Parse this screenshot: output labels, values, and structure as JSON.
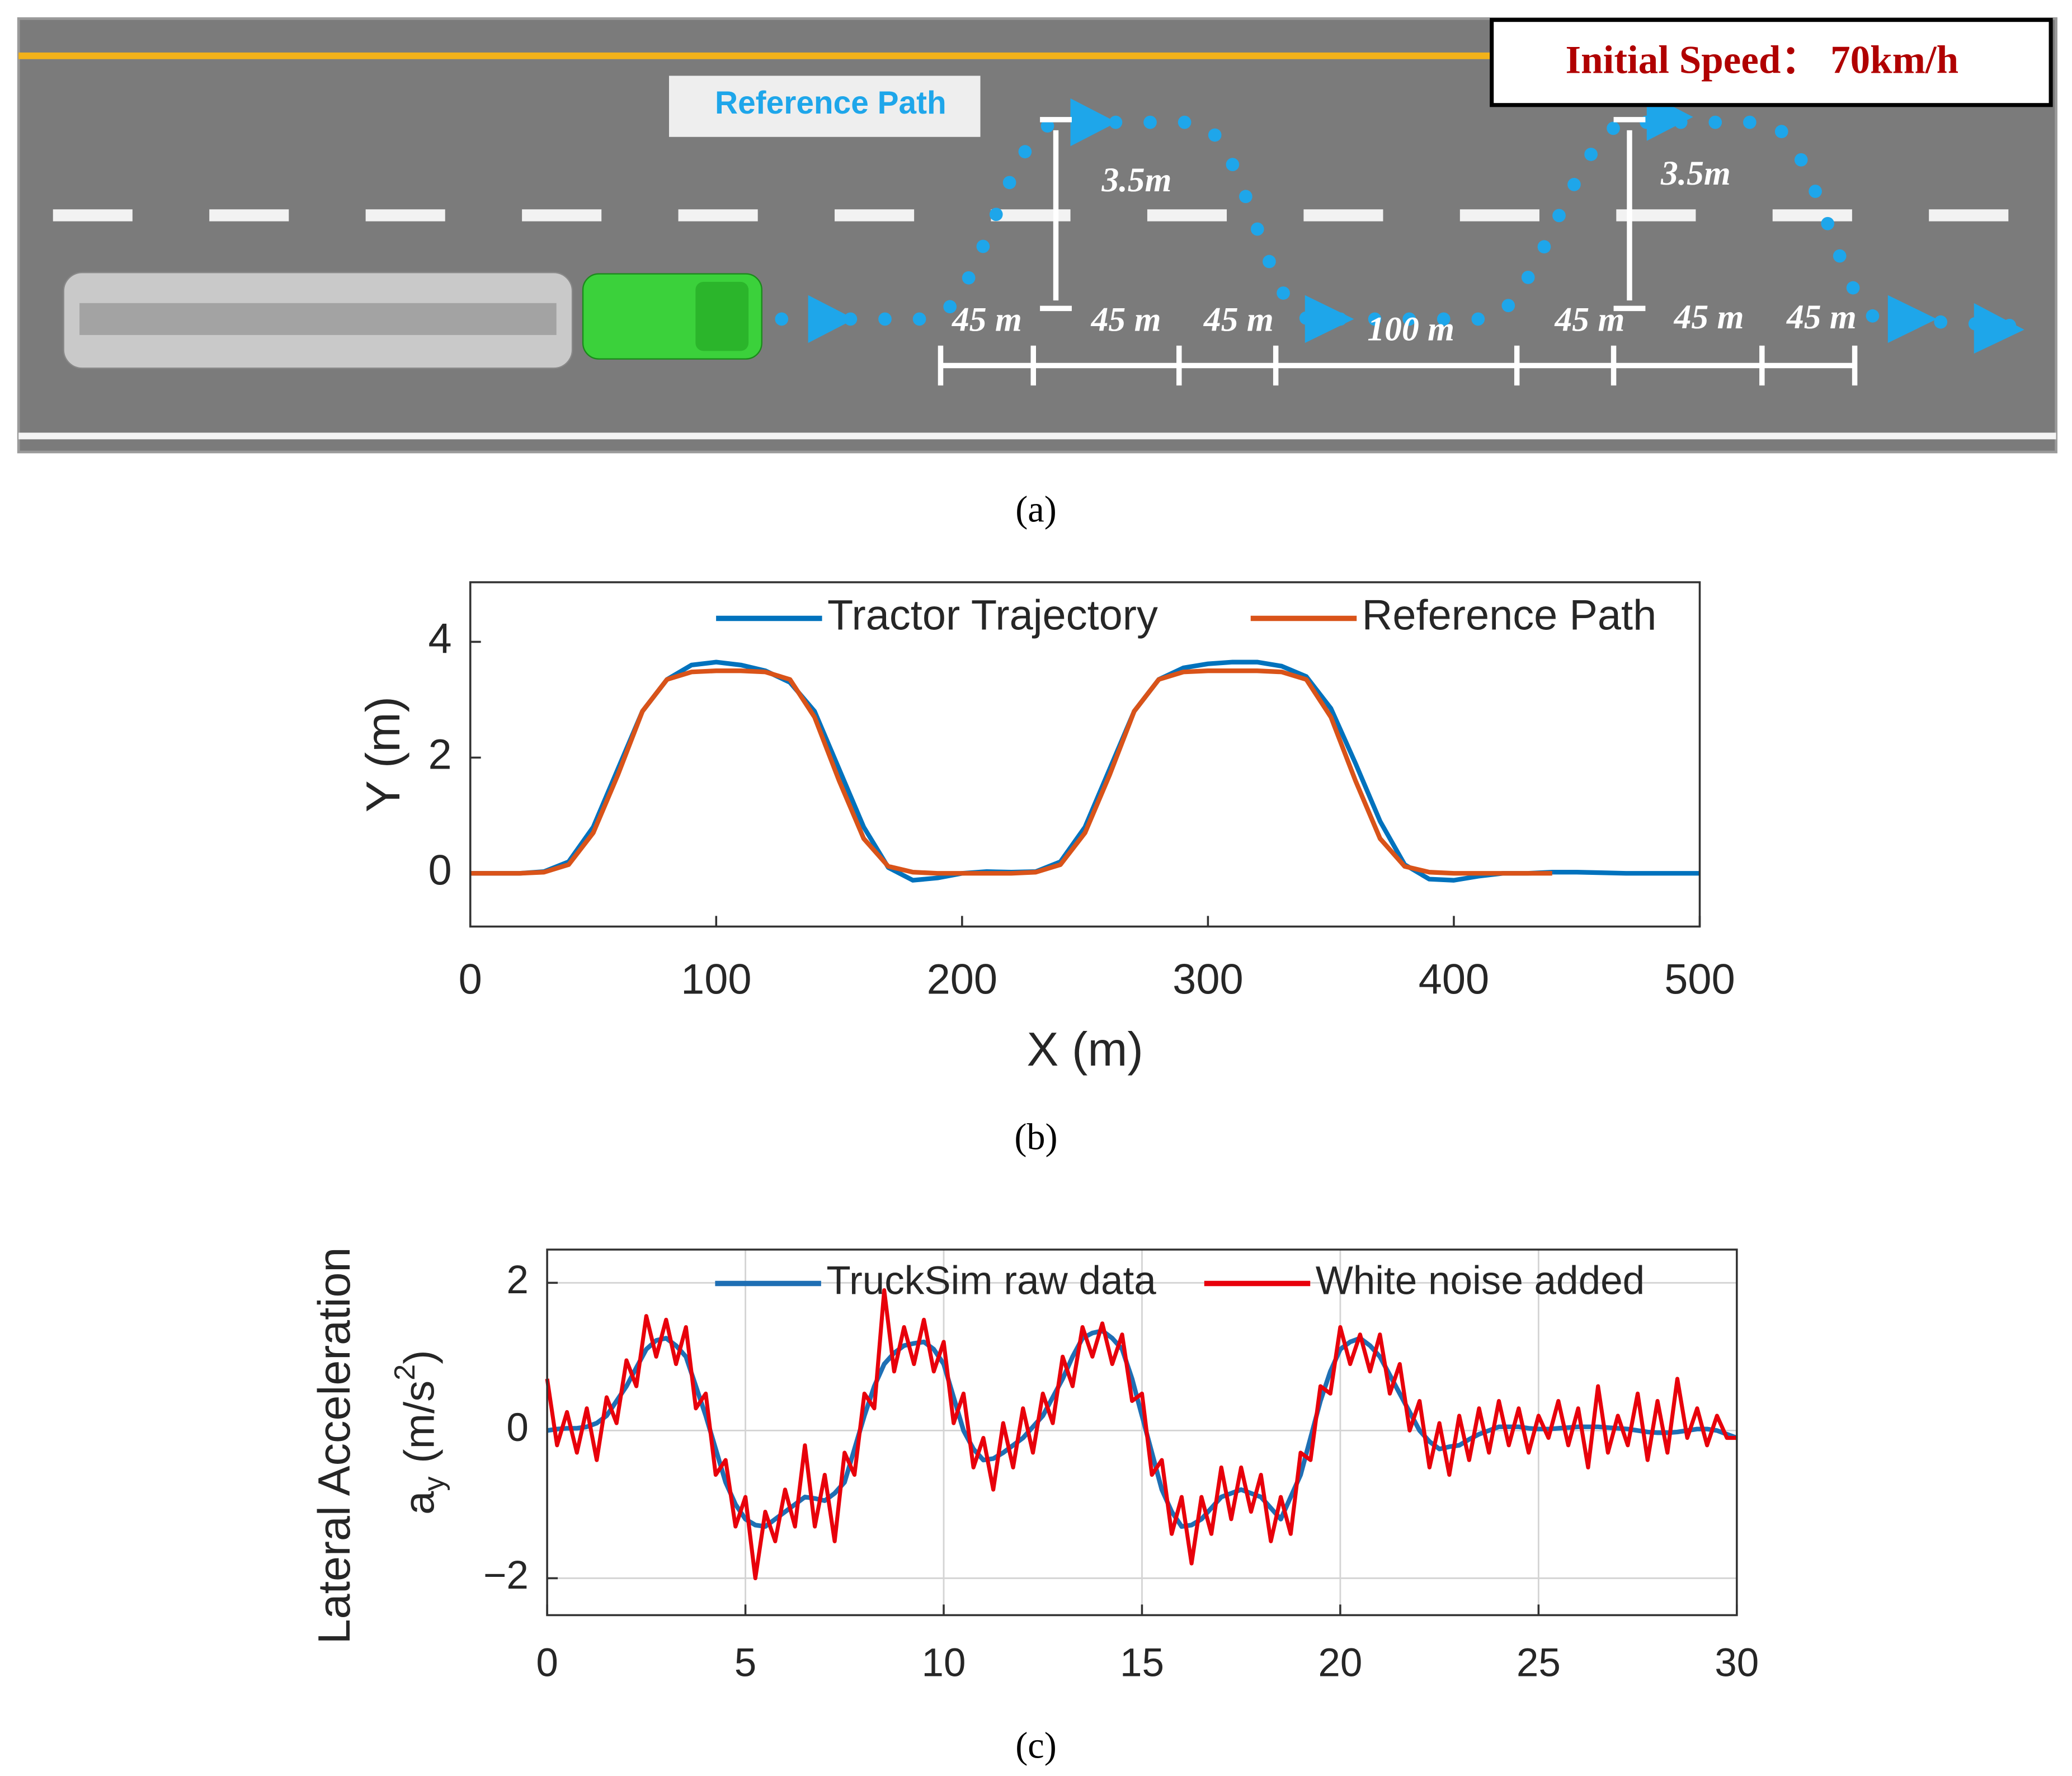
{
  "panel_a": {
    "speed_label": "Initial Speed：  70km/h",
    "reference_label": "Reference Path",
    "heights": [
      "3.5m",
      "3.5m"
    ],
    "distances": [
      "45 m",
      "45 m",
      "45 m",
      "100 m",
      "45 m",
      "45 m",
      "45 m"
    ]
  },
  "captions": [
    "(a)",
    "(b)",
    "(c)"
  ],
  "chart_data": [
    {
      "type": "line",
      "xlabel": "X (m)",
      "ylabel": "Y (m)",
      "legend": "upper right",
      "grid": false,
      "xlim": [
        0,
        500
      ],
      "xticks": [
        0,
        100,
        200,
        300,
        400,
        500
      ],
      "ylim": [
        -0.92,
        5.03
      ],
      "yticks": [
        0,
        2,
        4
      ],
      "x": [
        0,
        10,
        20,
        30,
        40,
        50,
        60,
        70,
        80,
        90,
        100,
        110,
        120,
        130,
        140,
        150,
        160,
        170,
        180,
        190,
        200,
        210,
        220,
        230,
        240,
        250,
        260,
        270,
        280,
        290,
        300,
        310,
        320,
        330,
        340,
        350,
        360,
        370,
        380,
        390,
        400,
        410,
        420,
        430,
        440,
        450,
        460,
        470,
        480,
        490,
        500
      ],
      "series": [
        {
          "name": "Tractor Trajectory",
          "color": "#0072bd",
          "values": [
            0,
            0,
            0,
            0.03,
            0.2,
            0.8,
            1.8,
            2.8,
            3.35,
            3.6,
            3.65,
            3.6,
            3.5,
            3.3,
            2.8,
            1.8,
            0.8,
            0.1,
            -0.12,
            -0.08,
            0,
            0.03,
            0.02,
            0.03,
            0.2,
            0.8,
            1.8,
            2.8,
            3.35,
            3.55,
            3.62,
            3.65,
            3.65,
            3.58,
            3.4,
            2.85,
            1.9,
            0.9,
            0.15,
            -0.1,
            -0.12,
            -0.05,
            0,
            0,
            0.02,
            0.02,
            0.01,
            0,
            0,
            0,
            0
          ]
        },
        {
          "name": "Reference Path",
          "color": "#d95319",
          "values": [
            0,
            0,
            0,
            0.02,
            0.15,
            0.7,
            1.7,
            2.8,
            3.35,
            3.48,
            3.5,
            3.5,
            3.48,
            3.35,
            2.7,
            1.6,
            0.6,
            0.12,
            0.02,
            0,
            0,
            0,
            0,
            0.02,
            0.15,
            0.7,
            1.7,
            2.8,
            3.35,
            3.48,
            3.5,
            3.5,
            3.5,
            3.48,
            3.35,
            2.7,
            1.6,
            0.6,
            0.12,
            0.02,
            0,
            0,
            0,
            0,
            0,
            null,
            null,
            null,
            null,
            null,
            null
          ]
        }
      ]
    },
    {
      "type": "line",
      "ylabel": "Lateral Acceleration",
      "ylabel_symbol": "a",
      "ylabel_subscript": "y",
      "ylabel_unit": "(m/s",
      "ylabel_superscript": "2",
      "ylabel_unit_end": ")",
      "legend": "upper center",
      "grid": true,
      "xlim": [
        0,
        30
      ],
      "xticks": [
        0,
        5,
        10,
        15,
        20,
        25,
        30
      ],
      "ylim": [
        -2.5,
        2.45
      ],
      "yticks": [
        {
          "value": -2,
          "label": "−2"
        },
        0,
        2
      ],
      "x": [
        0,
        0.25,
        0.5,
        0.75,
        1,
        1.25,
        1.5,
        1.75,
        2,
        2.25,
        2.5,
        2.75,
        3,
        3.25,
        3.5,
        3.75,
        4,
        4.25,
        4.5,
        4.75,
        5,
        5.25,
        5.5,
        5.75,
        6,
        6.25,
        6.5,
        6.75,
        7,
        7.25,
        7.5,
        7.75,
        8,
        8.25,
        8.5,
        8.75,
        9,
        9.25,
        9.5,
        9.75,
        10,
        10.25,
        10.5,
        10.75,
        11,
        11.25,
        11.5,
        11.75,
        12,
        12.25,
        12.5,
        12.75,
        13,
        13.25,
        13.5,
        13.75,
        14,
        14.25,
        14.5,
        14.75,
        15,
        15.25,
        15.5,
        15.75,
        16,
        16.25,
        16.5,
        16.75,
        17,
        17.25,
        17.5,
        17.75,
        18,
        18.25,
        18.5,
        18.75,
        19,
        19.25,
        19.5,
        19.75,
        20,
        20.25,
        20.5,
        20.75,
        21,
        21.25,
        21.5,
        21.75,
        22,
        22.25,
        22.5,
        22.75,
        23,
        23.25,
        23.5,
        23.75,
        24,
        24.25,
        24.5,
        24.75,
        25,
        25.25,
        25.5,
        25.75,
        26,
        26.25,
        26.5,
        26.75,
        27,
        27.25,
        27.5,
        27.75,
        28,
        28.25,
        28.5,
        28.75,
        29,
        29.25,
        29.5,
        29.75,
        30
      ],
      "series": [
        {
          "name": "TruckSim raw data",
          "color": "#1f6fb4",
          "values": [
            0,
            0.02,
            0.03,
            0.03,
            0.05,
            0.1,
            0.2,
            0.4,
            0.6,
            0.85,
            1.1,
            1.22,
            1.25,
            1.15,
            1.0,
            0.6,
            0.2,
            -0.25,
            -0.7,
            -1.0,
            -1.2,
            -1.28,
            -1.3,
            -1.2,
            -1.1,
            -1.0,
            -0.9,
            -0.92,
            -0.95,
            -0.85,
            -0.7,
            -0.25,
            0.2,
            0.6,
            0.9,
            1.05,
            1.15,
            1.18,
            1.2,
            1.1,
            0.9,
            0.45,
            0.0,
            -0.25,
            -0.4,
            -0.38,
            -0.3,
            -0.2,
            -0.1,
            0.05,
            0.2,
            0.45,
            0.7,
            1.0,
            1.25,
            1.32,
            1.35,
            1.25,
            1.1,
            0.7,
            0.2,
            -0.3,
            -0.8,
            -1.1,
            -1.3,
            -1.28,
            -1.2,
            -1.05,
            -0.9,
            -0.85,
            -0.8,
            -0.85,
            -0.9,
            -1.05,
            -1.2,
            -0.9,
            -0.6,
            -0.1,
            0.4,
            0.8,
            1.1,
            1.2,
            1.25,
            1.15,
            1.0,
            0.75,
            0.5,
            0.25,
            0.0,
            -0.15,
            -0.25,
            -0.22,
            -0.2,
            -0.12,
            -0.05,
            0.0,
            0.05,
            0.05,
            0.05,
            0.03,
            0.02,
            0.02,
            0.03,
            0.04,
            0.05,
            0.05,
            0.05,
            0.04,
            0.03,
            0.02,
            0.0,
            -0.02,
            -0.03,
            -0.03,
            -0.02,
            0.0,
            0.02,
            0.02,
            0.0,
            -0.05,
            -0.1
          ]
        },
        {
          "name": "White noise added",
          "color": "#e8000b",
          "values": [
            0.7,
            -0.2,
            0.25,
            -0.3,
            0.3,
            -0.4,
            0.45,
            0.1,
            0.95,
            0.6,
            1.55,
            1.0,
            1.5,
            0.9,
            1.4,
            0.3,
            0.5,
            -0.6,
            -0.4,
            -1.3,
            -0.9,
            -2.0,
            -1.1,
            -1.5,
            -0.8,
            -1.3,
            -0.2,
            -1.3,
            -0.6,
            -1.5,
            -0.3,
            -0.6,
            0.5,
            0.3,
            1.9,
            0.8,
            1.4,
            0.9,
            1.5,
            0.8,
            1.2,
            0.1,
            0.5,
            -0.5,
            -0.1,
            -0.8,
            0.1,
            -0.5,
            0.3,
            -0.3,
            0.5,
            0.1,
            1.0,
            0.6,
            1.4,
            1.0,
            1.45,
            0.9,
            1.3,
            0.4,
            0.5,
            -0.6,
            -0.4,
            -1.4,
            -0.9,
            -1.8,
            -0.9,
            -1.4,
            -0.5,
            -1.2,
            -0.5,
            -1.1,
            -0.6,
            -1.5,
            -0.9,
            -1.4,
            -0.3,
            -0.4,
            0.6,
            0.5,
            1.4,
            0.9,
            1.3,
            0.8,
            1.3,
            0.5,
            0.9,
            0.0,
            0.4,
            -0.5,
            0.1,
            -0.6,
            0.2,
            -0.4,
            0.3,
            -0.3,
            0.4,
            -0.2,
            0.3,
            -0.3,
            0.2,
            -0.1,
            0.4,
            -0.2,
            0.3,
            -0.5,
            0.6,
            -0.3,
            0.2,
            -0.2,
            0.5,
            -0.4,
            0.4,
            -0.3,
            0.7,
            -0.1,
            0.3,
            -0.2,
            0.2,
            -0.1,
            -0.1
          ]
        }
      ]
    }
  ]
}
